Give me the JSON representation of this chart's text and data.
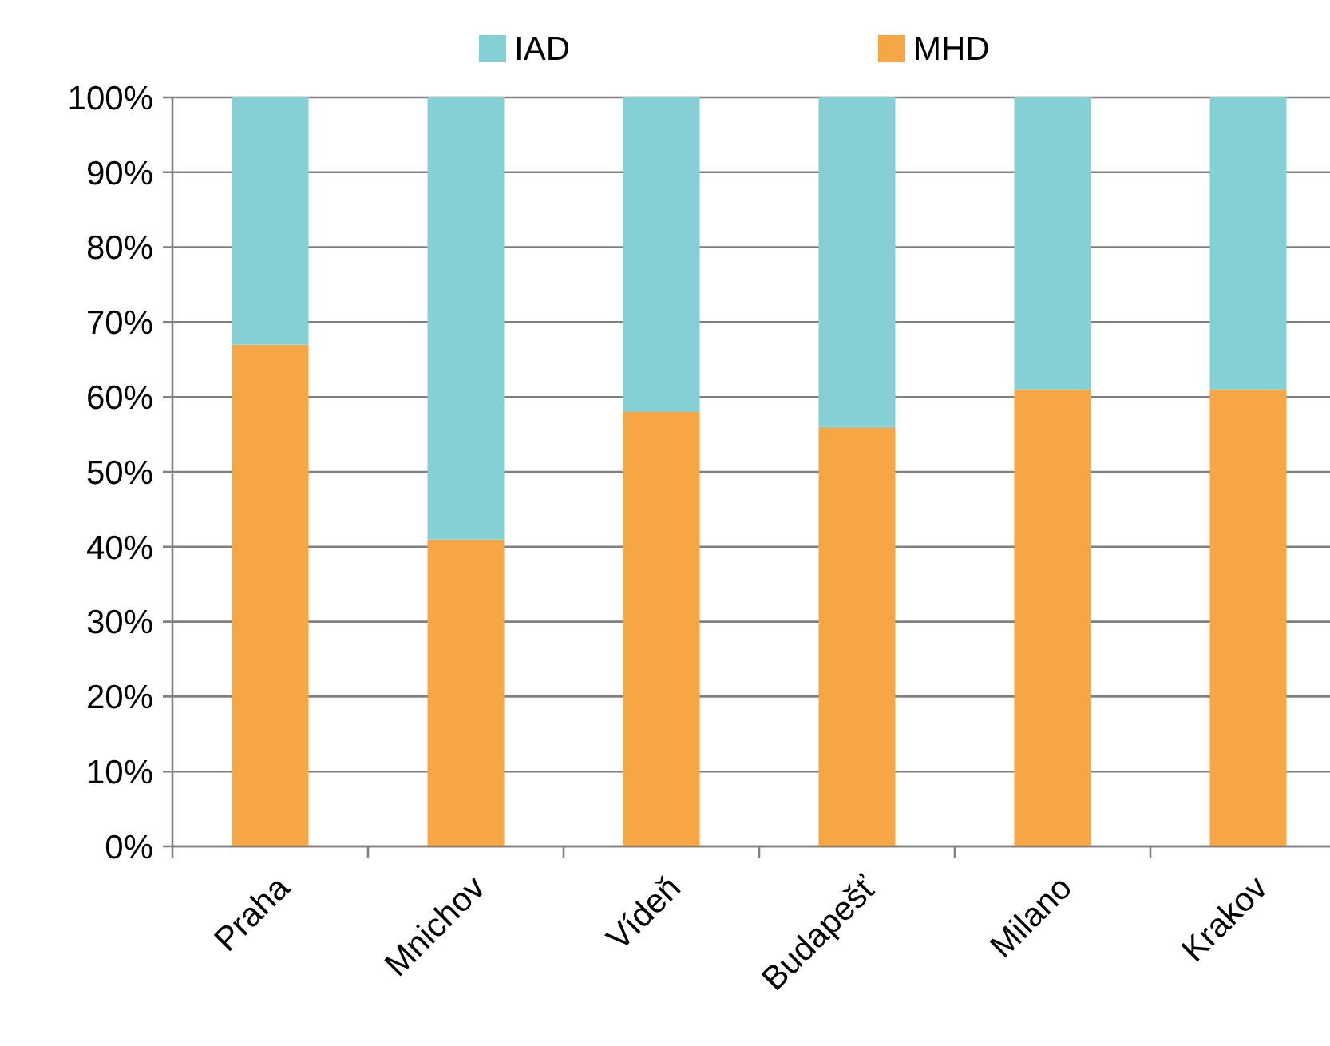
{
  "chart_data": {
    "type": "bar",
    "stacked": true,
    "categories": [
      "Praha",
      "Mnichov",
      "Vídeň",
      "Budapešť",
      "Milano",
      "Krakov"
    ],
    "series": [
      {
        "name": "MHD",
        "color": "#f6a645",
        "values": [
          67,
          41,
          58,
          56,
          61,
          61
        ]
      },
      {
        "name": "IAD",
        "color": "#84d0d4",
        "values": [
          33,
          59,
          42,
          44,
          39,
          39
        ]
      }
    ],
    "ylim": [
      0,
      100
    ],
    "yticks": [
      {
        "value": 0,
        "label": "0%"
      },
      {
        "value": 10,
        "label": "10%"
      },
      {
        "value": 20,
        "label": "20%"
      },
      {
        "value": 30,
        "label": "30%"
      },
      {
        "value": 40,
        "label": "40%"
      },
      {
        "value": 50,
        "label": "50%"
      },
      {
        "value": 60,
        "label": "60%"
      },
      {
        "value": 70,
        "label": "70%"
      },
      {
        "value": 80,
        "label": "80%"
      },
      {
        "value": 90,
        "label": "90%"
      },
      {
        "value": 100,
        "label": "100%"
      }
    ],
    "grid": "y",
    "legend": "top"
  }
}
